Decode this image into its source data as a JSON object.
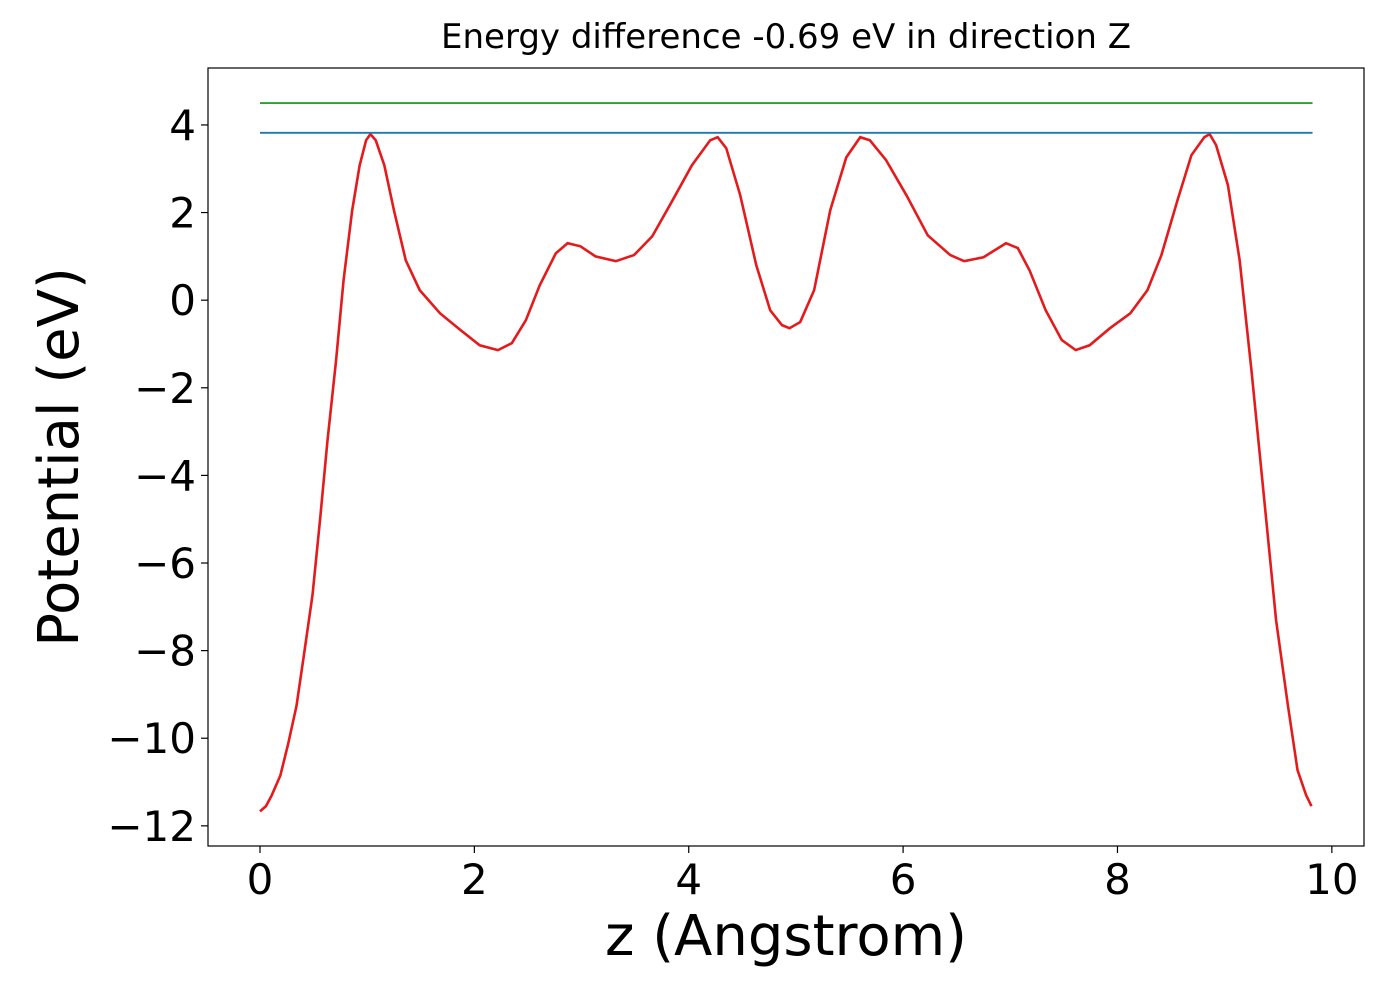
{
  "chart_data": {
    "type": "line",
    "title": "Energy difference -0.69 eV in direction Z",
    "xlabel": "z (Angstrom)",
    "ylabel": "Potential (eV)",
    "xlim": [
      -0.485,
      10.3
    ],
    "ylim": [
      -12.46,
      5.3
    ],
    "xticks": [
      0,
      2,
      4,
      6,
      8,
      10
    ],
    "yticks": [
      {
        "value": -12,
        "label": "−12"
      },
      {
        "value": -10,
        "label": "−10"
      },
      {
        "value": -8,
        "label": "−8"
      },
      {
        "value": -6,
        "label": "−6"
      },
      {
        "value": -4,
        "label": "−4"
      },
      {
        "value": -2,
        "label": "−2"
      },
      0,
      2,
      4
    ],
    "grid": false,
    "series": [
      {
        "color": "#e41a1c",
        "x": [
          0,
          0.056,
          0.11,
          0.19,
          0.26,
          0.34,
          0.41,
          0.49,
          0.56,
          0.63,
          0.71,
          0.78,
          0.86,
          0.93,
          0.99,
          1.03,
          1.08,
          1.16,
          1.25,
          1.36,
          1.49,
          1.68,
          1.87,
          2.05,
          2.22,
          2.35,
          2.48,
          2.61,
          2.76,
          2.87,
          2.99,
          3.13,
          3.32,
          3.49,
          3.66,
          3.84,
          4.03,
          4.2,
          4.27,
          4.35,
          4.48,
          4.63,
          4.76,
          4.87,
          4.94,
          5.04,
          5.17,
          5.32,
          5.47,
          5.6,
          5.69,
          5.84,
          6.03,
          6.23,
          6.44,
          6.57,
          6.75,
          6.96,
          7.07,
          7.18,
          7.33,
          7.48,
          7.61,
          7.74,
          7.93,
          8.12,
          8.28,
          8.41,
          8.56,
          8.69,
          8.81,
          8.86,
          8.92,
          9.03,
          9.14,
          9.25,
          9.37,
          9.48,
          9.59,
          9.68,
          9.76,
          9.81
        ],
        "values": [
          -11.67,
          -11.55,
          -11.3,
          -10.85,
          -10.16,
          -9.27,
          -8.1,
          -6.73,
          -5.02,
          -3.2,
          -1.37,
          0.46,
          2.05,
          3.08,
          3.65,
          3.79,
          3.65,
          3.08,
          2.05,
          0.91,
          0.23,
          -0.3,
          -0.68,
          -1.03,
          -1.14,
          -0.98,
          -0.46,
          0.34,
          1.07,
          1.3,
          1.23,
          1.0,
          0.89,
          1.03,
          1.46,
          2.24,
          3.08,
          3.65,
          3.72,
          3.47,
          2.4,
          0.8,
          -0.23,
          -0.57,
          -0.64,
          -0.5,
          0.23,
          2.05,
          3.26,
          3.72,
          3.65,
          3.2,
          2.4,
          1.48,
          1.03,
          0.89,
          0.98,
          1.3,
          1.19,
          0.68,
          -0.23,
          -0.91,
          -1.14,
          -1.03,
          -0.64,
          -0.3,
          0.23,
          1.03,
          2.28,
          3.31,
          3.72,
          3.79,
          3.54,
          2.63,
          0.91,
          -1.6,
          -4.57,
          -7.31,
          -9.25,
          -10.73,
          -11.3,
          -11.55
        ]
      },
      {
        "color": "#1f77b4",
        "x": [
          0,
          9.82
        ],
        "values": [
          3.82,
          3.82
        ]
      },
      {
        "color": "#2ca02c",
        "x": [
          0,
          9.82
        ],
        "values": [
          4.5,
          4.5
        ]
      }
    ]
  }
}
